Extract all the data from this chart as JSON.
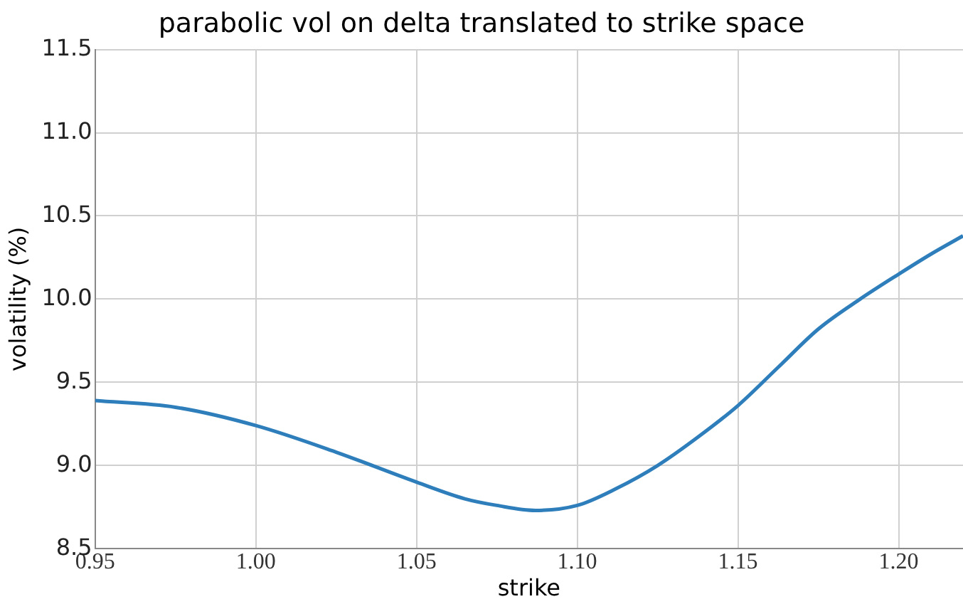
{
  "chart_data": {
    "type": "line",
    "title": "parabolic vol on delta translated to strike space",
    "xlabel": "strike",
    "ylabel": "volatility (%)",
    "series": [
      {
        "color": "#2e7ebb",
        "x": [
          0.95,
          0.975,
          1.0,
          1.025,
          1.05,
          1.065,
          1.075,
          1.087,
          1.1,
          1.112,
          1.125,
          1.1375,
          1.15,
          1.1625,
          1.175,
          1.188,
          1.2,
          1.21,
          1.22
        ],
        "values": [
          9.39,
          9.35,
          9.24,
          9.08,
          8.9,
          8.8,
          8.76,
          8.73,
          8.76,
          8.86,
          9.0,
          9.17,
          9.36,
          9.59,
          9.82,
          10.0,
          10.15,
          10.27,
          10.38
        ]
      }
    ],
    "xlim": [
      0.95,
      1.22
    ],
    "xticks": [
      0.95,
      {
        "value": 1.0,
        "label": "1.00"
      },
      1.05,
      {
        "value": 1.1,
        "label": "1.10"
      },
      1.15,
      {
        "value": 1.2,
        "label": "1.20"
      }
    ],
    "ylim": [
      8.5,
      11.5
    ],
    "yticks": [
      8.5,
      {
        "value": 9,
        "label": "9.0"
      },
      9.5,
      {
        "value": 10,
        "label": "10.0"
      },
      10.5,
      {
        "value": 11,
        "label": "11.0"
      },
      11.5
    ],
    "grid": true,
    "legend": false,
    "marker": "none",
    "line_style": "solid"
  }
}
